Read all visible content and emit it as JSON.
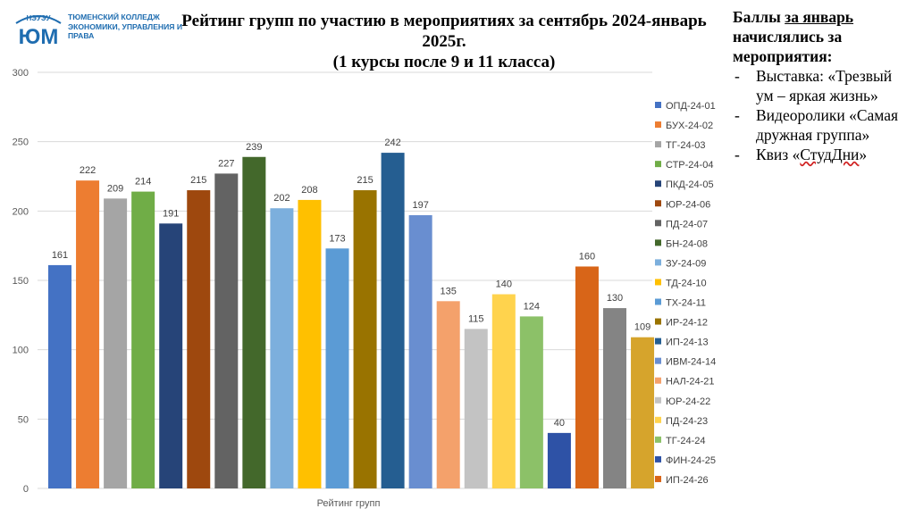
{
  "logo": {
    "mark_text": "ЮМ",
    "arc_text": "НЭУЭУ",
    "college_name": "ТЮМЕНСКИЙ КОЛЛЕДЖ ЭКОНОМИКИ, УПРАВЛЕНИЯ И ПРАВА"
  },
  "title": {
    "line1": "Рейтинг групп по участию в мероприятиях за сентябрь 2024-январь",
    "line2": "2025г.",
    "line3": "(1 курсы после 9 и 11 класса)"
  },
  "note": {
    "head_pre": "Баллы ",
    "head_underlined": "за январь",
    "head_post": " начислялись за мероприятия:",
    "items": [
      "Выставка: «Трезвый ум – яркая жизнь»",
      "Видеоролики «Самая дружная группа»"
    ],
    "last_item_pre": "Квиз «",
    "last_item_marked": "СтудДни",
    "last_item_post": "»"
  },
  "chart_data": {
    "type": "bar",
    "xlabel": "Рейтинг групп",
    "ylim": [
      0,
      300
    ],
    "yticks": [
      0,
      50,
      100,
      150,
      200,
      250,
      300
    ],
    "grid": true,
    "legend_position": "right",
    "data_labels": true,
    "series": [
      {
        "name": "ОПД-24-01",
        "value": 161,
        "color": "#4472c4"
      },
      {
        "name": "БУХ-24-02",
        "value": 222,
        "color": "#ed7d31"
      },
      {
        "name": "ТГ-24-03",
        "value": 209,
        "color": "#a5a5a5"
      },
      {
        "name": "СТР-24-04",
        "value": 214,
        "color": "#70ad47"
      },
      {
        "name": "ПКД-24-05",
        "value": 191,
        "color": "#264478"
      },
      {
        "name": "ЮР-24-06",
        "value": 215,
        "color": "#9e480e"
      },
      {
        "name": "ПД-24-07",
        "value": 227,
        "color": "#636363"
      },
      {
        "name": "БН-24-08",
        "value": 239,
        "color": "#43682b"
      },
      {
        "name": "ЗУ-24-09",
        "value": 202,
        "color": "#7cafdd"
      },
      {
        "name": "ТД-24-10",
        "value": 208,
        "color": "#ffc000"
      },
      {
        "name": "ТХ-24-11",
        "value": 173,
        "color": "#5b9bd5"
      },
      {
        "name": "ИР-24-12",
        "value": 215,
        "color": "#997300"
      },
      {
        "name": "ИП-24-13",
        "value": 242,
        "color": "#255e91"
      },
      {
        "name": "ИВМ-24-14",
        "value": 197,
        "color": "#698ed0"
      },
      {
        "name": "НАЛ-24-21",
        "value": 135,
        "color": "#f4a16b"
      },
      {
        "name": "ЮР-24-22",
        "value": 115,
        "color": "#c3c3c3"
      },
      {
        "name": "ПД-24-23",
        "value": 140,
        "color": "#ffd34d"
      },
      {
        "name": "ТГ-24-24",
        "value": 124,
        "color": "#8cc168"
      },
      {
        "name": "ФИН-24-25",
        "value": 40,
        "color": "#2e52a6"
      },
      {
        "name": "ИП-24-26",
        "value": 160,
        "color": "#d86518"
      },
      {
        "name": "",
        "value": 130,
        "color": "#848484"
      },
      {
        "name": "",
        "value": 109,
        "color": "#d6a42c"
      }
    ]
  }
}
